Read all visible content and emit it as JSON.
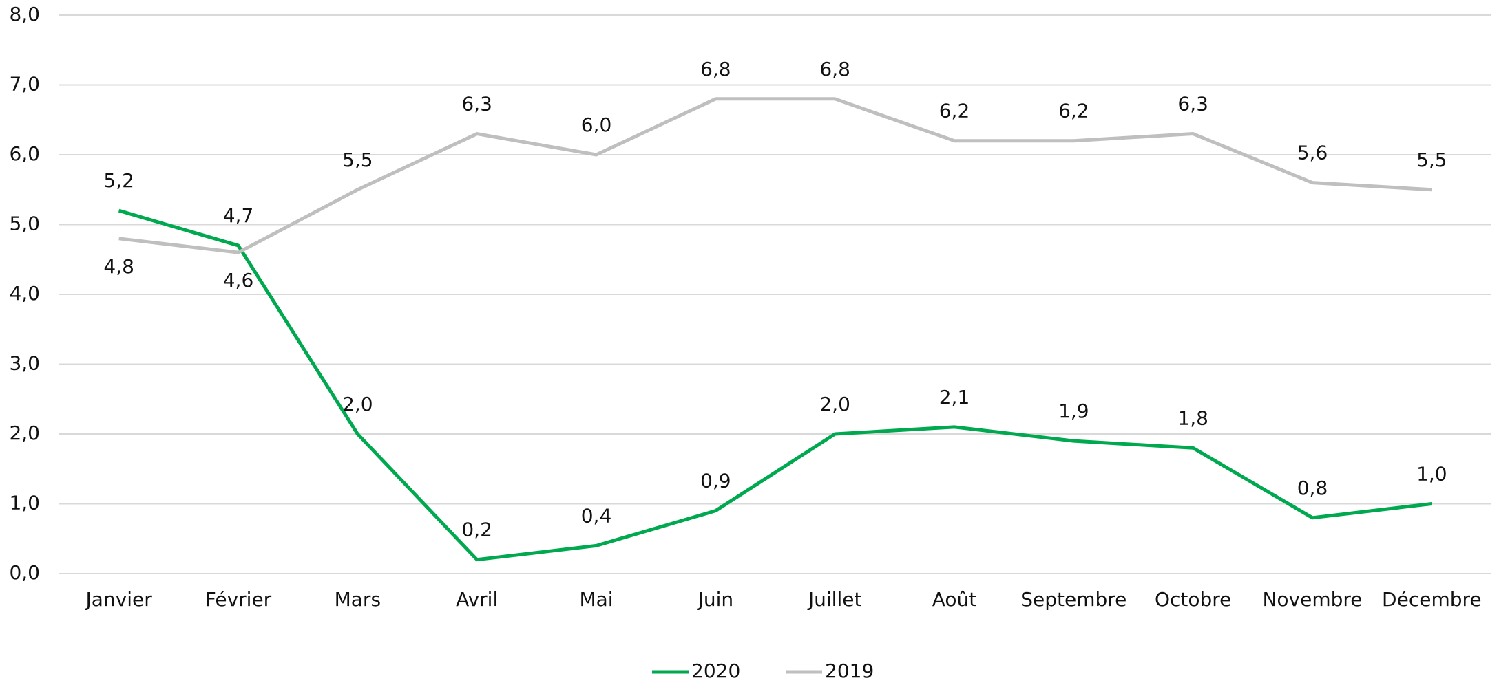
{
  "chart_data": {
    "type": "line",
    "categories": [
      "Janvier",
      "Février",
      "Mars",
      "Avril",
      "Mai",
      "Juin",
      "Juillet",
      "Août",
      "Septembre",
      "Octobre",
      "Novembre",
      "Décembre"
    ],
    "series": [
      {
        "name": "2020",
        "color": "#00a94f",
        "values": [
          5.2,
          4.7,
          2.0,
          0.2,
          0.4,
          0.9,
          2.0,
          2.1,
          1.9,
          1.8,
          0.8,
          1.0
        ],
        "value_labels": [
          "5,2",
          "4,7",
          "2,0",
          "0,2",
          "0,4",
          "0,9",
          "2,0",
          "2,1",
          "1,9",
          "1,8",
          "0,8",
          "1,0"
        ]
      },
      {
        "name": "2019",
        "color": "#bfbfbf",
        "values": [
          4.8,
          4.6,
          5.5,
          6.3,
          6.0,
          6.8,
          6.8,
          6.2,
          6.2,
          6.3,
          5.6,
          5.5
        ],
        "value_labels": [
          "4,8",
          "4,6",
          "5,5",
          "6,3",
          "6,0",
          "6,8",
          "6,8",
          "6,2",
          "6,2",
          "6,3",
          "5,6",
          "5,5"
        ]
      }
    ],
    "ylim": [
      0,
      8
    ],
    "yticks": [
      {
        "value": 0,
        "label": "0,0"
      },
      {
        "value": 1,
        "label": "1,0"
      },
      {
        "value": 2,
        "label": "2,0"
      },
      {
        "value": 3,
        "label": "3,0"
      },
      {
        "value": 4,
        "label": "4,0"
      },
      {
        "value": 5,
        "label": "5,0"
      },
      {
        "value": 6,
        "label": "6,0"
      },
      {
        "value": 7,
        "label": "7,0"
      },
      {
        "value": 8,
        "label": "8,0"
      }
    ],
    "grid": true,
    "legend": "bottom"
  }
}
